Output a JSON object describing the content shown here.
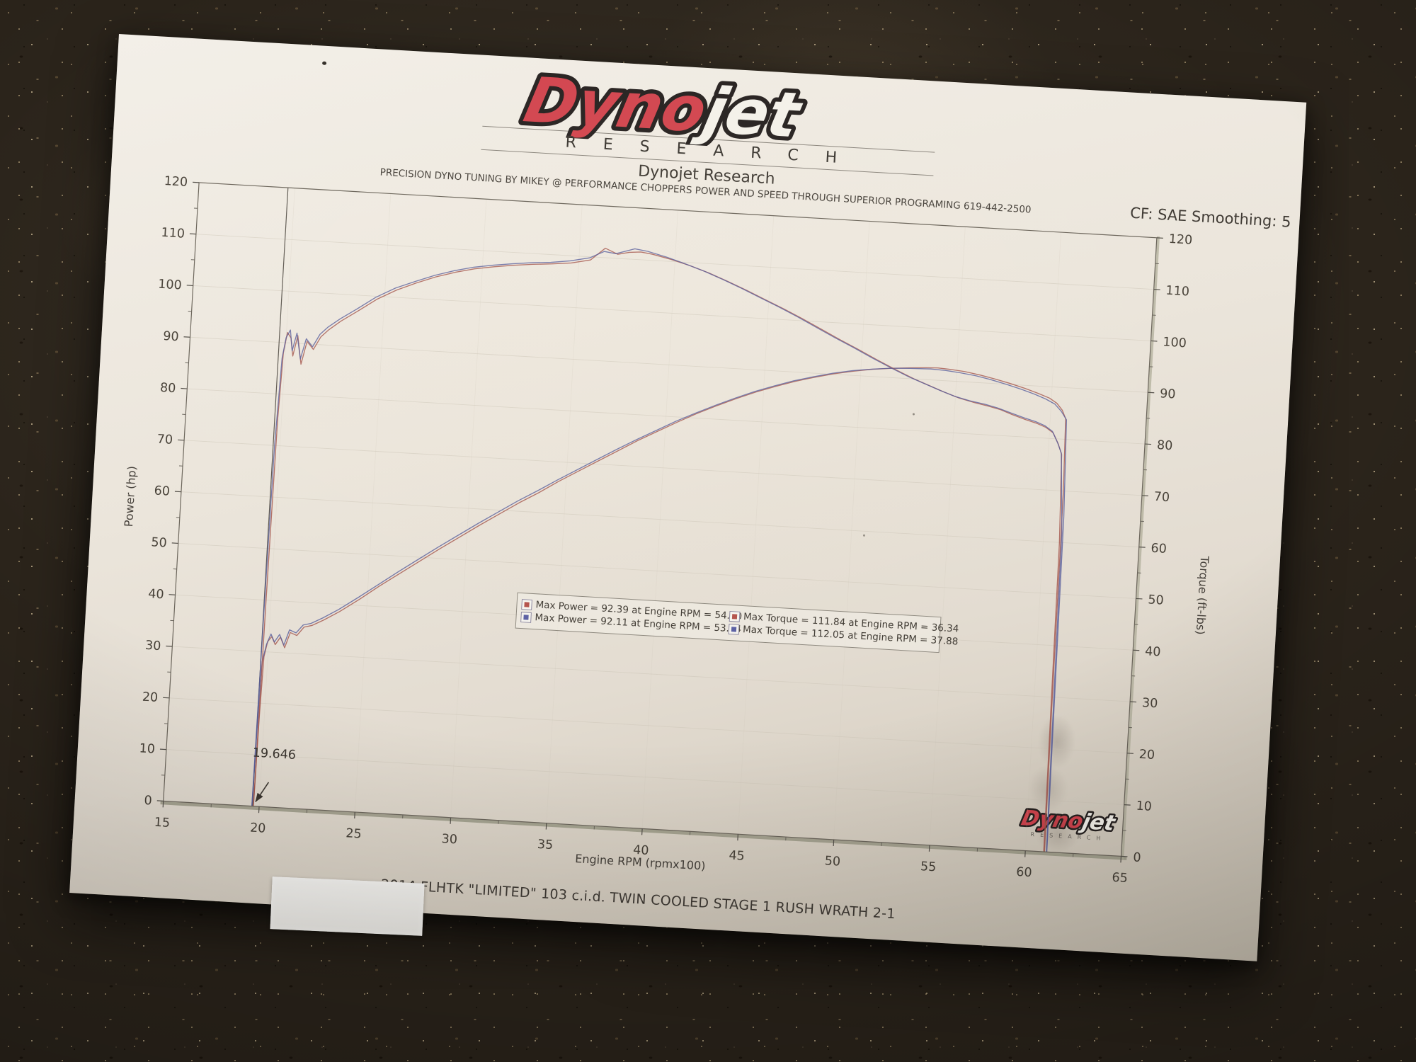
{
  "header": {
    "logo_dyno": "Dyno",
    "logo_jet": "jet",
    "logo_research": "RESEARCH",
    "title": "Dynojet Research",
    "tuner_line": "PRECISION DYNO TUNING BY MIKEY @ PERFORMANCE CHOPPERS POWER AND SPEED THROUGH SUPERIOR PROGRAMING 619-442-2500",
    "cf_label": "CF: SAE Smoothing: 5"
  },
  "chart_data": {
    "type": "line",
    "xlabel": "Engine RPM (rpmx100)",
    "ylabel_left": "Power (hp)",
    "ylabel_right": "Torque (ft-lbs)",
    "xlim": [
      15,
      65
    ],
    "ylim": [
      0,
      120
    ],
    "x_ticks": [
      15,
      20,
      25,
      30,
      35,
      40,
      45,
      50,
      55,
      60,
      65
    ],
    "y_ticks_left": [
      0,
      10,
      20,
      30,
      40,
      50,
      60,
      70,
      80,
      90,
      100,
      110,
      120
    ],
    "y_ticks_right": [
      0,
      10,
      20,
      30,
      40,
      50,
      60,
      70,
      80,
      90,
      100,
      110,
      120
    ],
    "grid": "faint",
    "legend_position": "center-left inside plot",
    "cursor": {
      "x": 19.646
    },
    "annotation": {
      "label": "19.646",
      "points_to_x": 19.646,
      "label_pos": [
        19.5,
        9.6
      ],
      "arrow_from": [
        20.42,
        4.8
      ],
      "arrow_to": [
        19.8,
        0.9
      ]
    },
    "legend": [
      [
        {
          "marker_color": "#b4524b",
          "label": "Max Power = 92.39 at Engine RPM = 54.00"
        },
        {
          "marker_color": "#b4524b",
          "label": "Max Torque = 111.84 at Engine RPM = 36.34"
        }
      ],
      [
        {
          "marker_color": "#5b60a4",
          "label": "Max Power = 92.11 at Engine RPM = 53.64"
        },
        {
          "marker_color": "#5b60a4",
          "label": "Max Torque = 112.05 at Engine RPM = 37.88"
        }
      ]
    ],
    "series": [
      {
        "name": "Power run 1 (red)",
        "axis": "left",
        "color": "#a3524a",
        "points": [
          [
            19.7,
            0
          ],
          [
            19.74,
            18
          ],
          [
            19.8,
            29
          ],
          [
            19.95,
            32
          ],
          [
            20.15,
            33
          ],
          [
            20.35,
            31.5
          ],
          [
            20.6,
            33
          ],
          [
            20.85,
            31
          ],
          [
            21.1,
            34
          ],
          [
            21.45,
            33.5
          ],
          [
            21.8,
            35.2
          ],
          [
            22.2,
            35.6
          ],
          [
            22.8,
            36.8
          ],
          [
            23.6,
            38.6
          ],
          [
            24.6,
            41.2
          ],
          [
            25.6,
            44
          ],
          [
            26.6,
            46.6
          ],
          [
            27.6,
            49.2
          ],
          [
            28.6,
            51.8
          ],
          [
            29.6,
            54.3
          ],
          [
            30.6,
            56.8
          ],
          [
            31.6,
            59.2
          ],
          [
            32.6,
            61.6
          ],
          [
            33.6,
            63.8
          ],
          [
            34.6,
            66.2
          ],
          [
            35.6,
            68.4
          ],
          [
            36.6,
            70.6
          ],
          [
            37.6,
            72.8
          ],
          [
            38.6,
            75
          ],
          [
            39.6,
            77
          ],
          [
            40.6,
            79
          ],
          [
            41.6,
            80.9
          ],
          [
            42.6,
            82.6
          ],
          [
            43.6,
            84.2
          ],
          [
            44.6,
            85.7
          ],
          [
            45.6,
            87
          ],
          [
            46.6,
            88.2
          ],
          [
            47.6,
            89.2
          ],
          [
            48.6,
            90.1
          ],
          [
            49.6,
            90.8
          ],
          [
            50.6,
            91.4
          ],
          [
            51.6,
            91.8
          ],
          [
            52.6,
            92.1
          ],
          [
            53.4,
            92.3
          ],
          [
            54.0,
            92.39
          ],
          [
            54.6,
            92.25
          ],
          [
            55.4,
            92
          ],
          [
            56.2,
            91.5
          ],
          [
            57.0,
            90.9
          ],
          [
            57.8,
            90.2
          ],
          [
            58.6,
            89.4
          ],
          [
            59.3,
            88.6
          ],
          [
            59.9,
            87.8
          ],
          [
            60.3,
            86.9
          ],
          [
            60.6,
            85.6
          ],
          [
            60.8,
            84
          ],
          [
            60.9,
            70
          ],
          [
            60.95,
            25
          ],
          [
            61.0,
            0
          ]
        ]
      },
      {
        "name": "Power run 2 (blue)",
        "axis": "left",
        "color": "#565c9c",
        "points": [
          [
            19.62,
            0
          ],
          [
            19.66,
            15
          ],
          [
            19.72,
            28
          ],
          [
            19.9,
            31.5
          ],
          [
            20.1,
            33.5
          ],
          [
            20.3,
            32
          ],
          [
            20.55,
            33.5
          ],
          [
            20.8,
            31.5
          ],
          [
            21.05,
            34.5
          ],
          [
            21.4,
            34
          ],
          [
            21.75,
            35.6
          ],
          [
            22.15,
            36
          ],
          [
            22.75,
            37.2
          ],
          [
            23.55,
            39
          ],
          [
            24.55,
            41.6
          ],
          [
            25.55,
            44.3
          ],
          [
            26.55,
            47
          ],
          [
            27.55,
            49.6
          ],
          [
            28.55,
            52.2
          ],
          [
            29.55,
            54.7
          ],
          [
            30.55,
            57.2
          ],
          [
            31.55,
            59.6
          ],
          [
            32.55,
            62
          ],
          [
            33.55,
            64.2
          ],
          [
            34.55,
            66.5
          ],
          [
            35.55,
            68.7
          ],
          [
            36.55,
            70.9
          ],
          [
            37.55,
            73.1
          ],
          [
            38.55,
            75.2
          ],
          [
            39.55,
            77.2
          ],
          [
            40.55,
            79.2
          ],
          [
            41.55,
            81
          ],
          [
            42.55,
            82.7
          ],
          [
            43.55,
            84.3
          ],
          [
            44.55,
            85.8
          ],
          [
            45.55,
            87.1
          ],
          [
            46.55,
            88.3
          ],
          [
            47.55,
            89.3
          ],
          [
            48.55,
            90.2
          ],
          [
            49.55,
            90.9
          ],
          [
            50.55,
            91.4
          ],
          [
            51.55,
            91.8
          ],
          [
            52.55,
            92
          ],
          [
            53.64,
            92.11
          ],
          [
            54.4,
            92
          ],
          [
            55.2,
            91.7
          ],
          [
            56.0,
            91.3
          ],
          [
            56.8,
            90.7
          ],
          [
            57.6,
            90
          ],
          [
            58.4,
            89.2
          ],
          [
            59.1,
            88.4
          ],
          [
            59.7,
            87.6
          ],
          [
            60.2,
            86.7
          ],
          [
            60.55,
            85.4
          ],
          [
            60.85,
            83.8
          ],
          [
            61.0,
            65
          ],
          [
            61.08,
            20
          ],
          [
            61.12,
            0
          ]
        ]
      },
      {
        "name": "Torque run 1 (red)",
        "axis": "right",
        "color": "#a3524a",
        "points": [
          [
            19.7,
            0
          ],
          [
            19.74,
            40
          ],
          [
            19.8,
            75
          ],
          [
            19.9,
            88
          ],
          [
            20.05,
            92
          ],
          [
            20.25,
            91
          ],
          [
            20.4,
            87.5
          ],
          [
            20.6,
            91.5
          ],
          [
            20.85,
            86
          ],
          [
            21.1,
            90.5
          ],
          [
            21.45,
            89
          ],
          [
            21.8,
            91.5
          ],
          [
            22.2,
            93
          ],
          [
            22.8,
            94.8
          ],
          [
            23.6,
            96.8
          ],
          [
            24.6,
            99.4
          ],
          [
            25.6,
            101.4
          ],
          [
            26.6,
            103
          ],
          [
            27.6,
            104.4
          ],
          [
            28.6,
            105.5
          ],
          [
            29.6,
            106.4
          ],
          [
            30.6,
            107
          ],
          [
            31.6,
            107.5
          ],
          [
            32.6,
            107.9
          ],
          [
            33.6,
            108.2
          ],
          [
            34.6,
            108.6
          ],
          [
            35.6,
            109.4
          ],
          [
            36.34,
            111.84
          ],
          [
            37.0,
            110.8
          ],
          [
            37.6,
            111.3
          ],
          [
            38.2,
            111.5
          ],
          [
            38.8,
            111.2
          ],
          [
            39.8,
            110.4
          ],
          [
            40.8,
            109.4
          ],
          [
            41.8,
            108.2
          ],
          [
            42.8,
            106.8
          ],
          [
            43.8,
            105.3
          ],
          [
            44.8,
            103.7
          ],
          [
            45.8,
            102.1
          ],
          [
            46.8,
            100.4
          ],
          [
            47.8,
            98.6
          ],
          [
            48.8,
            96.8
          ],
          [
            49.8,
            95.1
          ],
          [
            50.8,
            93.3
          ],
          [
            51.8,
            91.6
          ],
          [
            52.8,
            90
          ],
          [
            53.6,
            88.9
          ],
          [
            54.4,
            87.8
          ],
          [
            55.2,
            86.8
          ],
          [
            56.0,
            86.1
          ],
          [
            56.7,
            85.6
          ],
          [
            57.4,
            85
          ],
          [
            58.0,
            84.2
          ],
          [
            58.7,
            83.4
          ],
          [
            59.3,
            82.8
          ],
          [
            59.8,
            82.1
          ],
          [
            60.2,
            81.1
          ],
          [
            60.5,
            79
          ],
          [
            60.7,
            77
          ],
          [
            60.85,
            60
          ],
          [
            60.92,
            20
          ],
          [
            60.96,
            0
          ]
        ]
      },
      {
        "name": "Torque run 2 (blue)",
        "axis": "right",
        "color": "#565c9c",
        "points": [
          [
            19.62,
            0
          ],
          [
            19.66,
            35
          ],
          [
            19.72,
            70
          ],
          [
            19.85,
            87
          ],
          [
            20.0,
            91
          ],
          [
            20.2,
            92.5
          ],
          [
            20.35,
            88.5
          ],
          [
            20.55,
            92
          ],
          [
            20.8,
            87
          ],
          [
            21.05,
            91
          ],
          [
            21.4,
            89.5
          ],
          [
            21.75,
            92
          ],
          [
            22.15,
            93.5
          ],
          [
            22.75,
            95.2
          ],
          [
            23.55,
            97.2
          ],
          [
            24.55,
            99.8
          ],
          [
            25.55,
            101.8
          ],
          [
            26.55,
            103.3
          ],
          [
            27.55,
            104.7
          ],
          [
            28.55,
            105.8
          ],
          [
            29.55,
            106.7
          ],
          [
            30.55,
            107.3
          ],
          [
            31.55,
            107.8
          ],
          [
            32.55,
            108.2
          ],
          [
            33.55,
            108.5
          ],
          [
            34.55,
            109
          ],
          [
            35.55,
            109.8
          ],
          [
            36.3,
            111.2
          ],
          [
            36.9,
            110.9
          ],
          [
            37.88,
            112.05
          ],
          [
            38.55,
            111.7
          ],
          [
            39.55,
            110.8
          ],
          [
            40.55,
            109.7
          ],
          [
            41.55,
            108.5
          ],
          [
            42.55,
            107.1
          ],
          [
            43.55,
            105.6
          ],
          [
            44.55,
            104
          ],
          [
            45.55,
            102.4
          ],
          [
            46.55,
            100.7
          ],
          [
            47.55,
            98.9
          ],
          [
            48.55,
            97.1
          ],
          [
            49.55,
            95.4
          ],
          [
            50.55,
            93.6
          ],
          [
            51.55,
            91.9
          ],
          [
            52.55,
            90.3
          ],
          [
            53.35,
            89.2
          ],
          [
            54.15,
            88.1
          ],
          [
            54.95,
            87.1
          ],
          [
            55.75,
            86.4
          ],
          [
            56.55,
            85.9
          ],
          [
            57.25,
            85.3
          ],
          [
            57.95,
            84.5
          ],
          [
            58.65,
            83.7
          ],
          [
            59.25,
            83.1
          ],
          [
            59.75,
            82.4
          ],
          [
            60.15,
            81.4
          ],
          [
            60.45,
            79.3
          ],
          [
            60.68,
            77.3
          ],
          [
            60.95,
            62
          ],
          [
            61.05,
            18
          ],
          [
            61.1,
            0
          ]
        ]
      }
    ]
  },
  "footer": {
    "small_logo_dyno": "Dyno",
    "small_logo_jet": "jet",
    "small_logo_research": "RESEARCH",
    "vehicle_line": "2014 FLHTK \"LIMITED\" 103 c.i.d. TWIN COOLED STAGE 1 RUSH WRATH 2-1"
  }
}
